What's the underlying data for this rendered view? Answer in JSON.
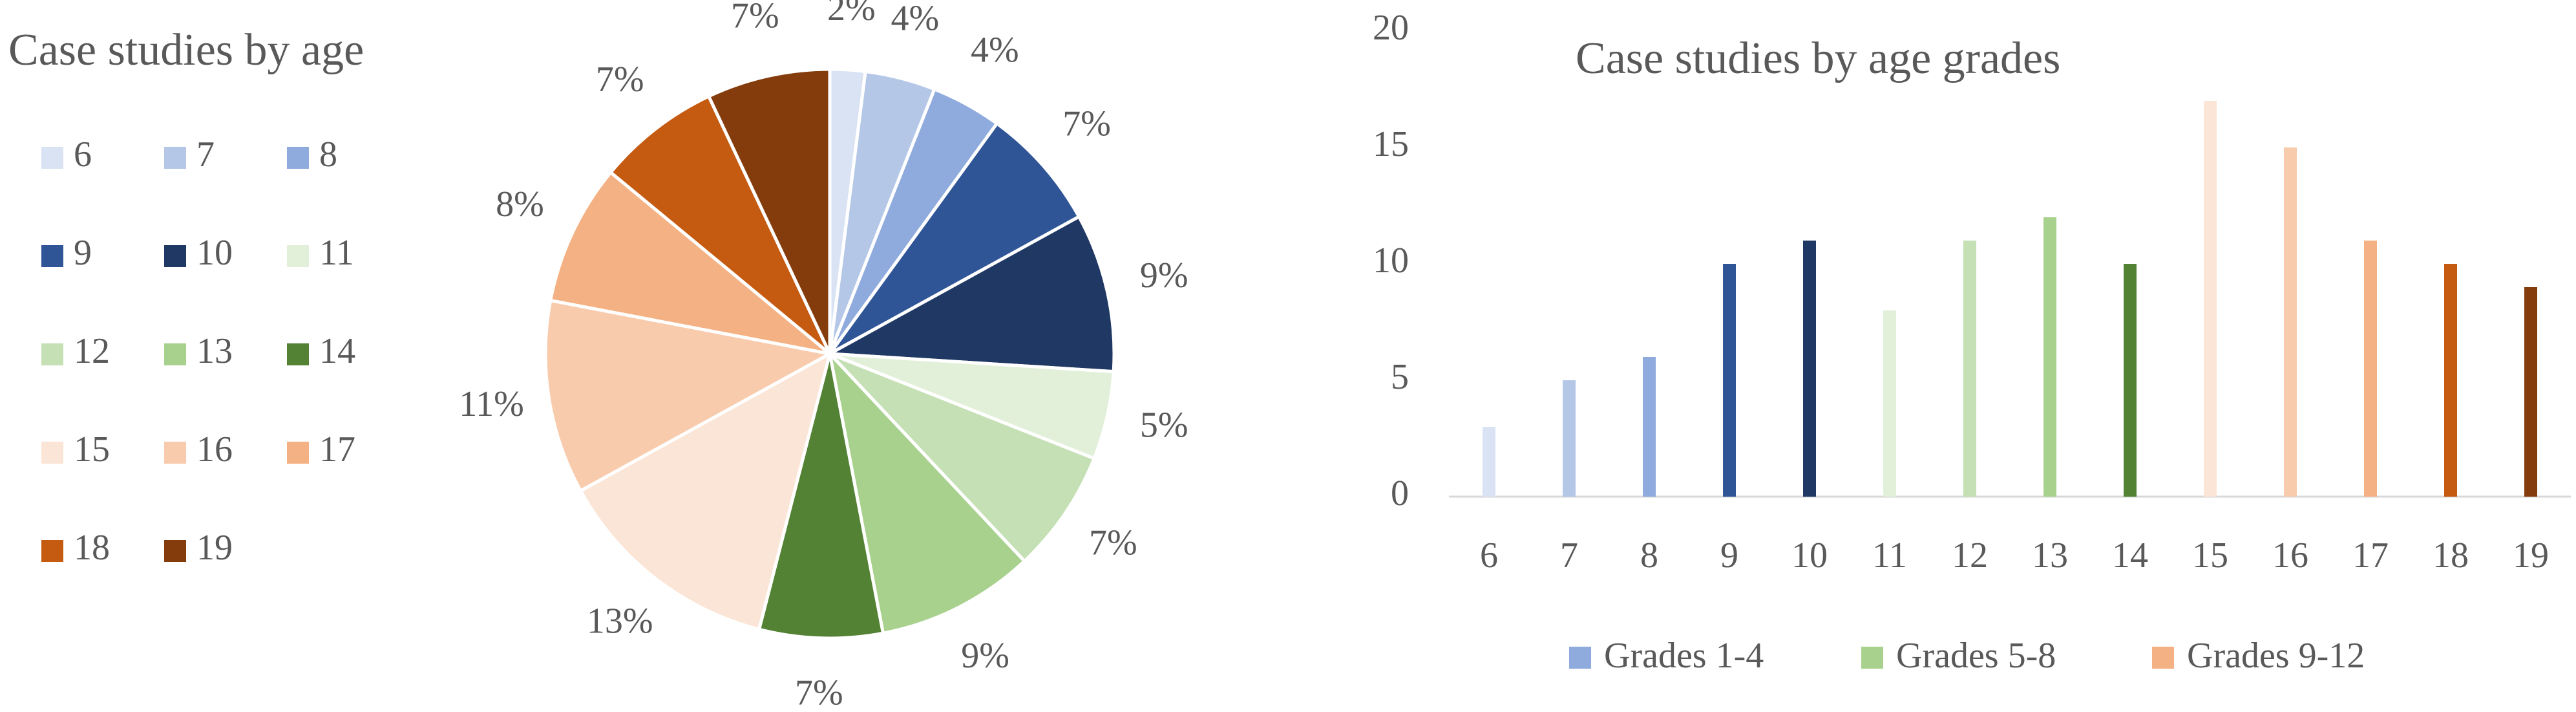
{
  "chart_data": [
    {
      "type": "pie",
      "title": "Case studies by age",
      "categories": [
        "6",
        "7",
        "8",
        "9",
        "10",
        "11",
        "12",
        "13",
        "14",
        "15",
        "16",
        "17",
        "18",
        "19"
      ],
      "values": [
        2,
        4,
        4,
        7,
        9,
        5,
        7,
        9,
        7,
        13,
        11,
        8,
        7,
        7
      ],
      "value_labels": [
        "2%",
        "4%",
        "4%",
        "7%",
        "9%",
        "5%",
        "7%",
        "9%",
        "7%",
        "13%",
        "11%",
        "8%",
        "7%",
        "7%"
      ],
      "colors": [
        "#dae3f3",
        "#b4c7e7",
        "#8faadc",
        "#2f5597",
        "#203864",
        "#e2f0d9",
        "#c5e0b4",
        "#a9d18e",
        "#548235",
        "#fbe5d6",
        "#f8cbad",
        "#f4b183",
        "#c55a11",
        "#843c0c"
      ],
      "legend": "left"
    },
    {
      "type": "bar",
      "title": "Case studies by age grades",
      "categories": [
        "6",
        "7",
        "8",
        "9",
        "10",
        "11",
        "12",
        "13",
        "14",
        "15",
        "16",
        "17",
        "18",
        "19"
      ],
      "values": [
        3,
        5,
        6,
        10,
        11,
        8,
        11,
        12,
        10,
        17,
        15,
        11,
        10,
        9
      ],
      "colors": [
        "#dae3f3",
        "#b4c7e7",
        "#8faadc",
        "#2f5597",
        "#203864",
        "#e2f0d9",
        "#c5e0b4",
        "#a9d18e",
        "#548235",
        "#fbe5d6",
        "#f8cbad",
        "#f4b183",
        "#c55a11",
        "#843c0c"
      ],
      "ylim": [
        0,
        20
      ],
      "yticks": [
        0,
        5,
        10,
        15,
        20
      ],
      "grid": false,
      "legend": [
        {
          "name": "Grades 1-4",
          "color": "#8faadc"
        },
        {
          "name": "Grades 5-8",
          "color": "#a9d18e"
        },
        {
          "name": "Grades 9-12",
          "color": "#f4b183"
        }
      ]
    }
  ]
}
